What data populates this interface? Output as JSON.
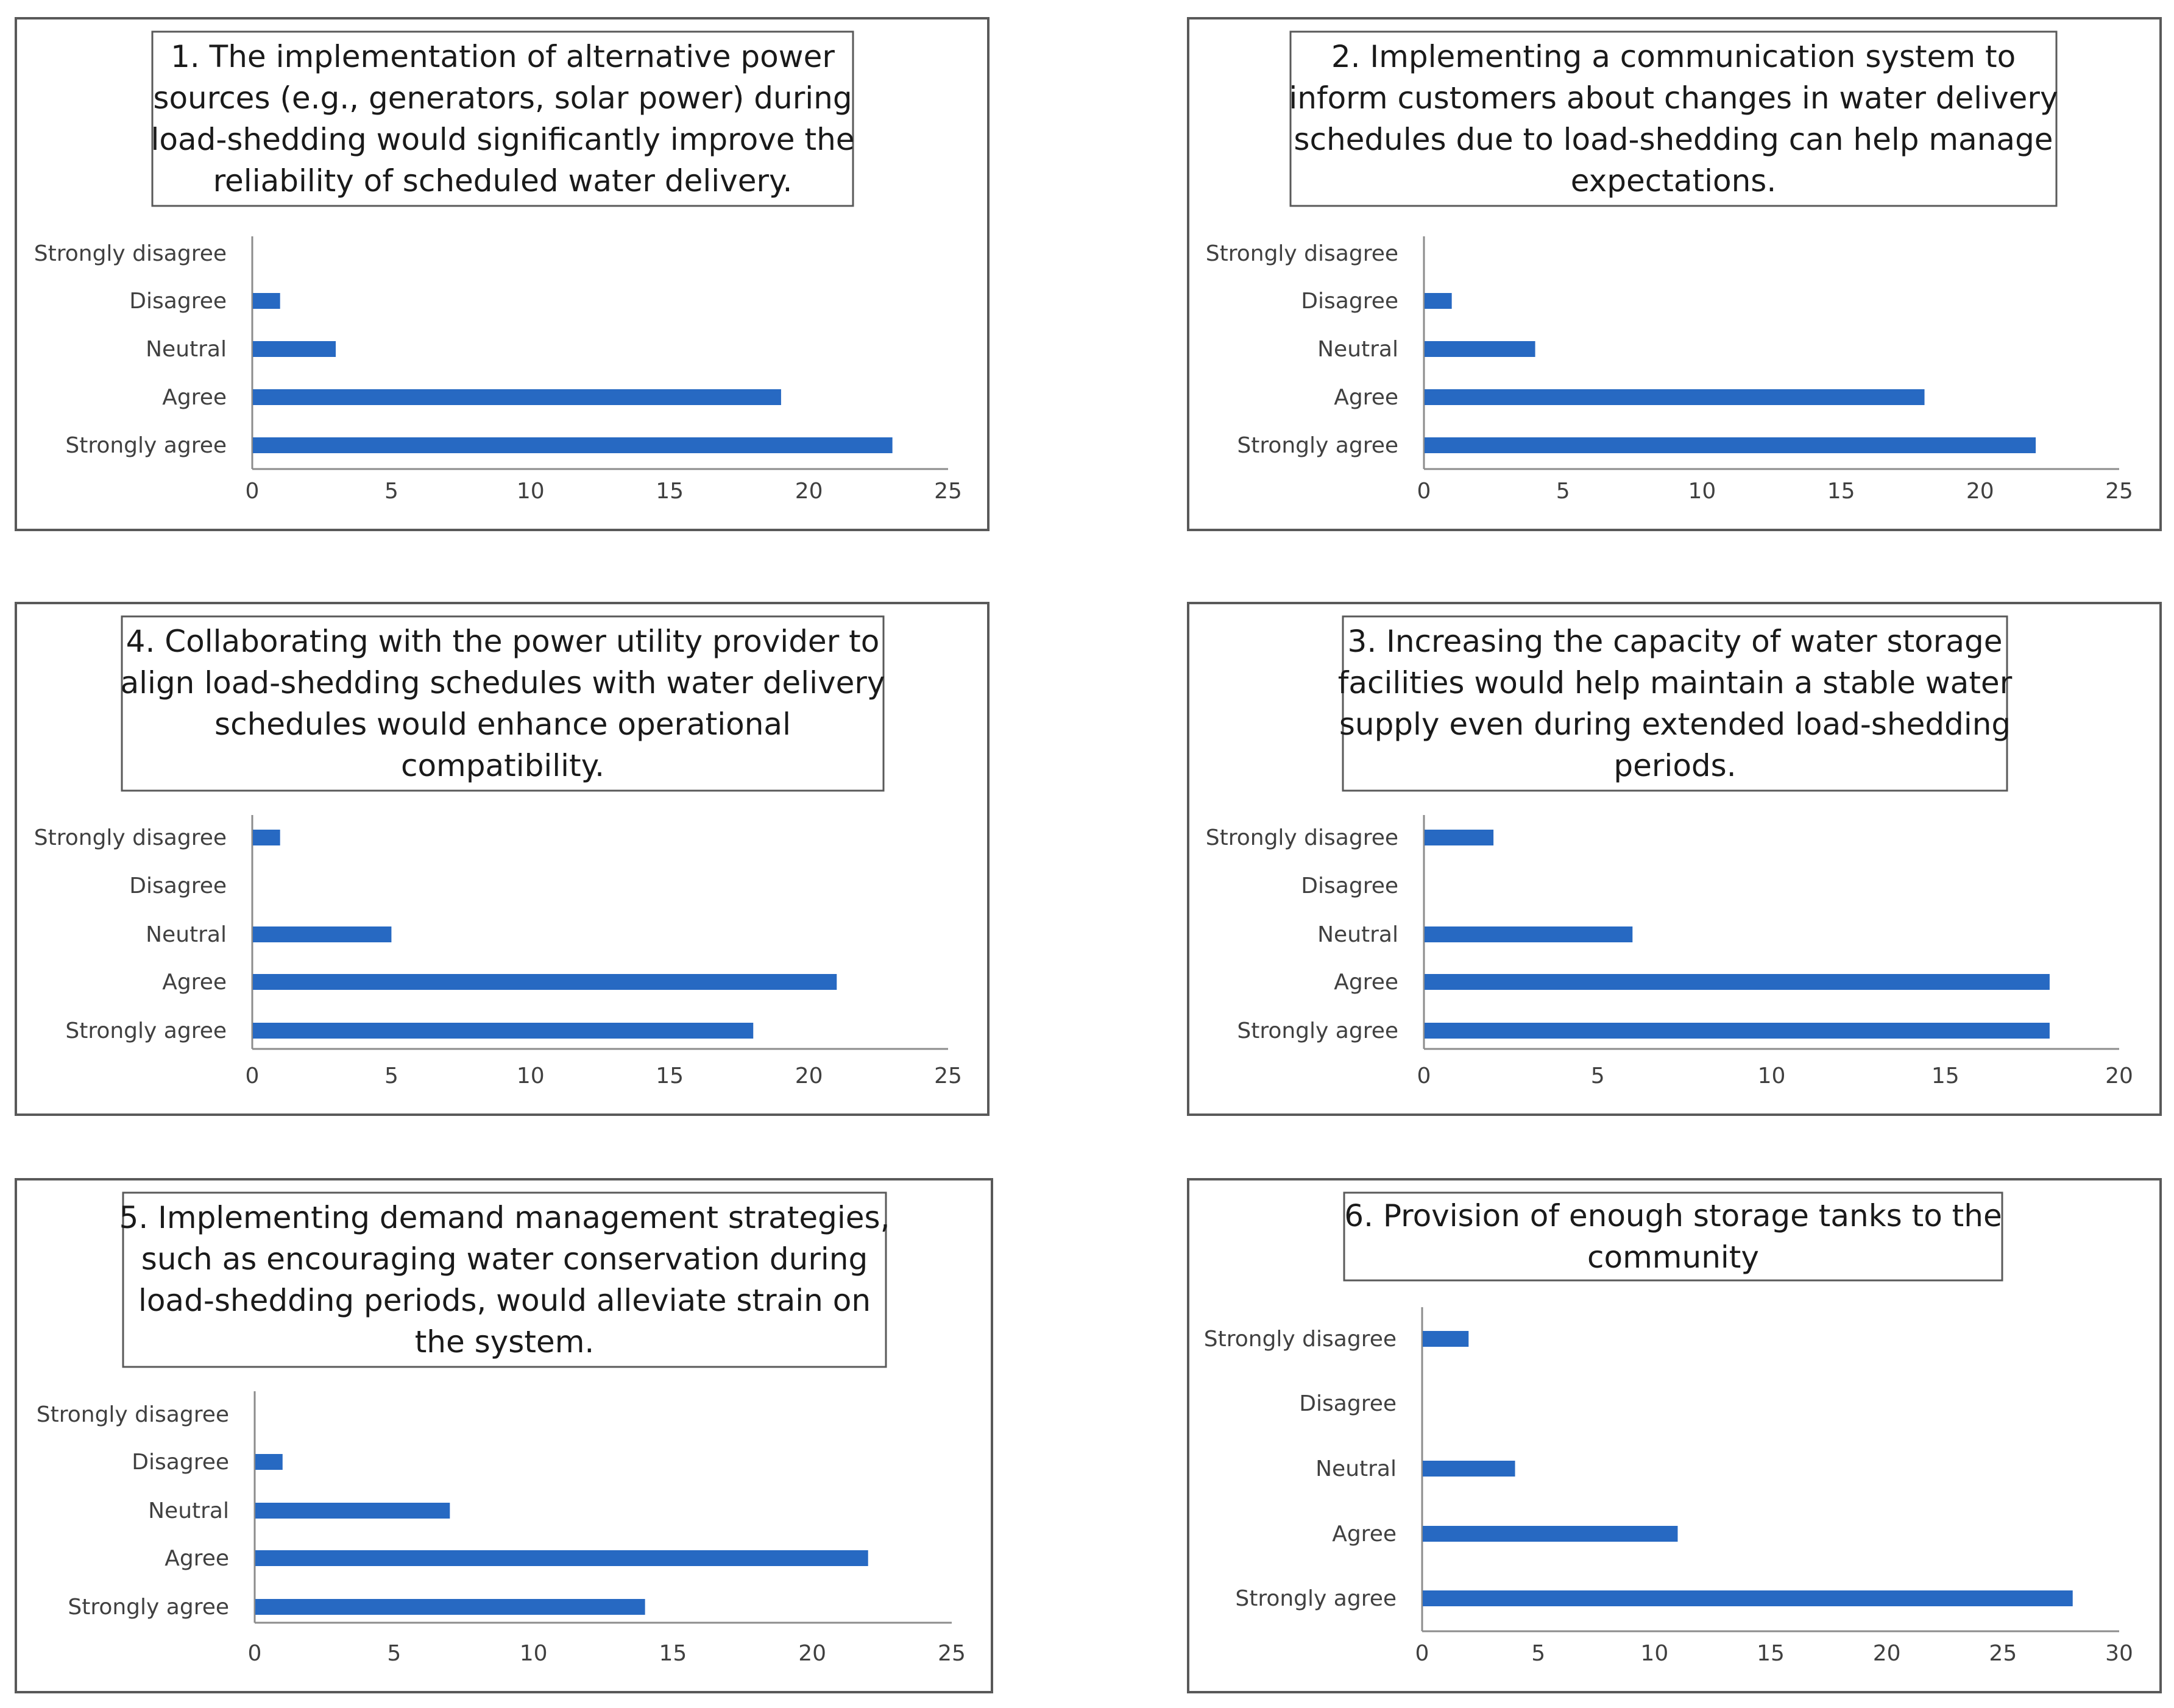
{
  "chart_data": [
    {
      "type": "bar",
      "orientation": "horizontal",
      "title_lines": [
        "1. The implementation of alternative power",
        "sources (e.g., generators, solar power) during",
        "load-shedding would significantly improve the",
        "reliability of scheduled water delivery."
      ],
      "categories": [
        "Strongly disagree",
        "Disagree",
        "Neutral",
        "Agree",
        "Strongly agree"
      ],
      "values": [
        0,
        1,
        3,
        19,
        23
      ],
      "xlim": [
        0,
        25
      ],
      "ticks": [
        0,
        5,
        10,
        15,
        20,
        25
      ],
      "color": "#2769c2"
    },
    {
      "type": "bar",
      "orientation": "horizontal",
      "title_lines": [
        "2. Implementing a communication system to",
        "inform customers about changes in water delivery",
        "schedules due to load-shedding can help manage",
        "expectations."
      ],
      "categories": [
        "Strongly disagree",
        "Disagree",
        "Neutral",
        "Agree",
        "Strongly agree"
      ],
      "values": [
        0,
        1,
        4,
        18,
        22
      ],
      "xlim": [
        0,
        25
      ],
      "ticks": [
        0,
        5,
        10,
        15,
        20,
        25
      ],
      "color": "#2769c2"
    },
    {
      "type": "bar",
      "orientation": "horizontal",
      "title_lines": [
        "4. Collaborating with the power utility provider to",
        "align load-shedding schedules with water delivery",
        "schedules would enhance operational",
        "compatibility."
      ],
      "categories": [
        "Strongly disagree",
        "Disagree",
        "Neutral",
        "Agree",
        "Strongly agree"
      ],
      "values": [
        1,
        0,
        5,
        21,
        18
      ],
      "xlim": [
        0,
        25
      ],
      "ticks": [
        0,
        5,
        10,
        15,
        20,
        25
      ],
      "color": "#2769c2"
    },
    {
      "type": "bar",
      "orientation": "horizontal",
      "title_lines": [
        "3. Increasing the capacity of water storage",
        "facilities would help maintain a stable water",
        "supply even during extended load-shedding",
        "periods."
      ],
      "categories": [
        "Strongly disagree",
        "Disagree",
        "Neutral",
        "Agree",
        "Strongly agree"
      ],
      "values": [
        2,
        0,
        6,
        18,
        18
      ],
      "xlim": [
        0,
        20
      ],
      "ticks": [
        0,
        5,
        10,
        15,
        20
      ],
      "color": "#2769c2"
    },
    {
      "type": "bar",
      "orientation": "horizontal",
      "title_lines": [
        "5. Implementing demand management strategies,",
        "such as encouraging water conservation during",
        "load-shedding periods, would alleviate strain on",
        "the system."
      ],
      "categories": [
        "Strongly disagree",
        "Disagree",
        "Neutral",
        "Agree",
        "Strongly agree"
      ],
      "values": [
        0,
        1,
        7,
        22,
        14
      ],
      "xlim": [
        0,
        25
      ],
      "ticks": [
        0,
        5,
        10,
        15,
        20,
        25
      ],
      "color": "#2769c2"
    },
    {
      "type": "bar",
      "orientation": "horizontal",
      "title_lines": [
        "6. Provision of enough storage tanks to the",
        "community"
      ],
      "categories": [
        "Strongly disagree",
        "Disagree",
        "Neutral",
        "Agree",
        "Strongly agree"
      ],
      "values": [
        2,
        0,
        4,
        11,
        28
      ],
      "xlim": [
        0,
        30
      ],
      "ticks": [
        0,
        5,
        10,
        15,
        20,
        25,
        30
      ],
      "color": "#2769c2"
    }
  ]
}
